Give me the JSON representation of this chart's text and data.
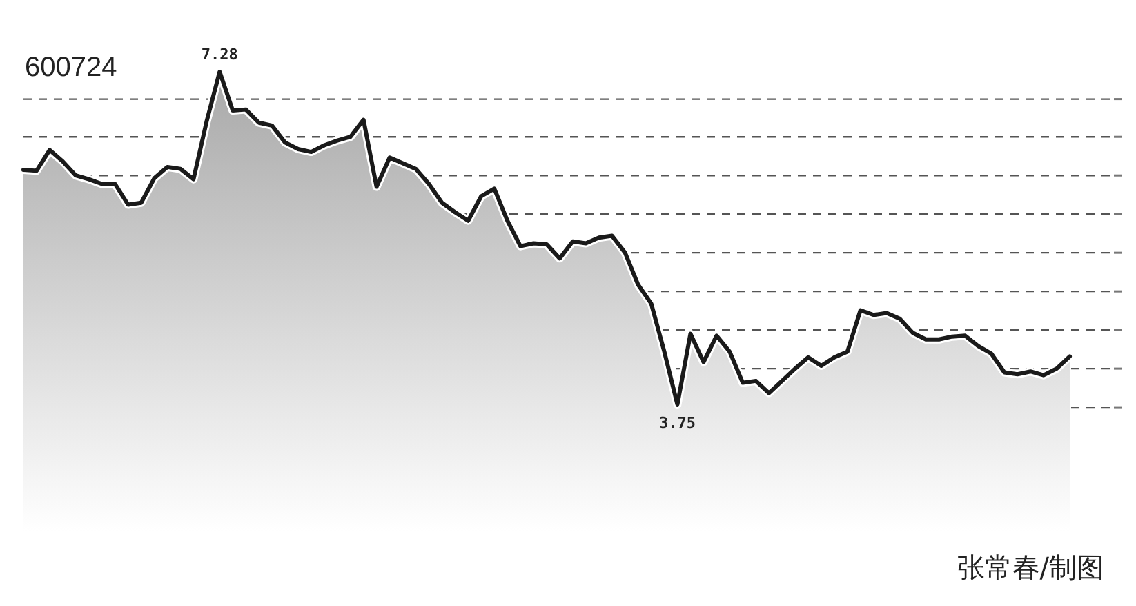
{
  "chart_data": {
    "type": "area",
    "title": "600724",
    "categories": [
      null,
      null,
      null,
      null,
      null,
      null,
      null,
      null,
      null,
      null,
      null,
      null,
      null,
      null,
      null,
      null,
      null,
      null,
      null,
      null,
      null,
      null,
      null,
      null,
      null,
      null,
      null,
      null,
      null,
      null,
      null,
      null,
      null,
      null,
      null,
      null,
      null,
      null,
      null,
      null,
      null,
      null,
      null,
      null,
      null,
      null,
      null,
      null,
      null,
      null,
      null,
      null,
      null,
      null,
      null,
      null,
      null,
      null,
      null,
      null,
      null,
      null,
      null,
      null,
      null,
      null,
      null,
      null,
      null,
      null,
      null,
      null,
      null,
      null,
      null,
      null,
      null,
      null,
      null,
      null,
      null
    ],
    "series": [
      {
        "color": "#1a1a1a",
        "values": [
          6.24,
          6.23,
          6.45,
          6.33,
          6.18,
          6.14,
          6.09,
          6.09,
          5.87,
          5.89,
          6.15,
          6.27,
          6.25,
          6.14,
          6.75,
          7.28,
          6.87,
          6.88,
          6.74,
          6.71,
          6.53,
          6.46,
          6.43,
          6.5,
          6.55,
          6.59,
          6.77,
          6.06,
          6.37,
          6.31,
          6.25,
          6.09,
          5.89,
          5.79,
          5.7,
          5.96,
          6.04,
          5.7,
          5.43,
          5.46,
          5.45,
          5.3,
          5.48,
          5.46,
          5.52,
          5.54,
          5.36,
          5.02,
          4.82,
          4.31,
          3.75,
          4.5,
          4.2,
          4.48,
          4.31,
          3.98,
          4.0,
          3.87,
          4.0,
          4.13,
          4.25,
          4.16,
          4.25,
          4.31,
          4.75,
          4.7,
          4.72,
          4.66,
          4.51,
          4.44,
          4.44,
          4.47,
          4.48,
          4.37,
          4.29,
          4.09,
          4.07,
          4.1,
          4.06,
          4.13,
          4.26
        ],
        "value_labels": [
          null,
          null,
          null,
          null,
          null,
          null,
          null,
          null,
          null,
          null,
          null,
          null,
          null,
          null,
          null,
          "7.28",
          null,
          null,
          null,
          null,
          null,
          null,
          null,
          null,
          null,
          null,
          null,
          null,
          null,
          null,
          null,
          null,
          null,
          null,
          null,
          null,
          null,
          null,
          null,
          null,
          null,
          null,
          null,
          null,
          null,
          null,
          null,
          null,
          null,
          null,
          "3.75",
          null,
          null,
          null,
          null,
          null,
          null,
          null,
          null,
          null,
          null,
          null,
          null,
          null,
          null,
          null,
          null,
          null,
          null,
          null,
          null,
          null,
          null,
          null,
          null,
          null,
          null,
          null,
          null,
          null,
          null
        ]
      }
    ],
    "yticks": [
      {
        "value": 3.72,
        "label": null
      },
      {
        "value": 4.13,
        "label": null
      },
      {
        "value": 4.54,
        "label": null
      },
      {
        "value": 4.95,
        "label": null
      },
      {
        "value": 5.36,
        "label": null
      },
      {
        "value": 5.77,
        "label": null
      },
      {
        "value": 6.18,
        "label": null
      },
      {
        "value": 6.59,
        "label": null
      },
      {
        "value": 6.99,
        "label": null
      }
    ],
    "grid": "y",
    "line_style": "solid",
    "annotations": [
      "张常春/制图"
    ]
  }
}
